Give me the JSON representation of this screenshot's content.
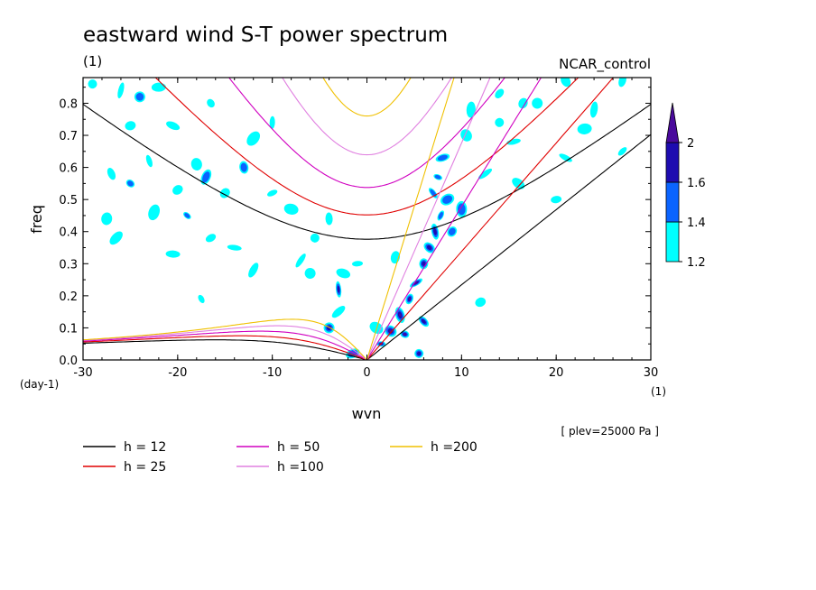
{
  "chart_data": {
    "type": "contour",
    "title": "eastward wind S-T power spectrum",
    "subtitle_left": "(1)",
    "subtitle_right": "NCAR_control",
    "xlabel": "wvn",
    "ylabel": "freq",
    "x_unit": "(1)",
    "y_unit": "(day-1)",
    "annotation": "[ plev=25000 Pa ]",
    "xlim": [
      -30,
      30
    ],
    "ylim": [
      0,
      0.88
    ],
    "x_ticks": [
      -30,
      -20,
      -10,
      0,
      10,
      20,
      30
    ],
    "x_tick_labels": [
      "-30",
      "-20",
      "-10",
      "0",
      "10",
      "20",
      "30"
    ],
    "y_ticks": [
      0,
      0.1,
      0.2,
      0.3,
      0.4,
      0.5,
      0.6,
      0.7,
      0.8
    ],
    "y_tick_labels": [
      "0.0",
      "0.1",
      "0.2",
      "0.3",
      "0.4",
      "0.5",
      "0.6",
      "0.7",
      "0.8"
    ],
    "colorbar": {
      "levels": [
        1.2,
        1.4,
        1.6,
        2
      ],
      "level_labels": [
        "1.2",
        "1.4",
        "1.6",
        "2"
      ],
      "colors": [
        "#00ffff",
        "#0a64ff",
        "#1e0cb0",
        "#4a0a9c"
      ],
      "extend": "max"
    },
    "dispersion_curves": [
      {
        "label": "h = 12",
        "h": 12,
        "color": "#000000"
      },
      {
        "label": "h = 25",
        "h": 25,
        "color": "#e00000"
      },
      {
        "label": "h = 50",
        "h": 50,
        "color": "#d000c0"
      },
      {
        "label": "h =100",
        "h": 100,
        "color": "#e080e0"
      },
      {
        "label": "h =200",
        "h": 200,
        "color": "#f0c000"
      }
    ],
    "spectral_blobs": [
      {
        "x": 1.5,
        "y": 0.05,
        "level": 3
      },
      {
        "x": 2.5,
        "y": 0.09,
        "level": 3
      },
      {
        "x": 3.5,
        "y": 0.14,
        "level": 3
      },
      {
        "x": 4.5,
        "y": 0.19,
        "level": 3
      },
      {
        "x": 5.2,
        "y": 0.24,
        "level": 3
      },
      {
        "x": 6.0,
        "y": 0.3,
        "level": 2
      },
      {
        "x": 6.6,
        "y": 0.35,
        "level": 2
      },
      {
        "x": 7.2,
        "y": 0.4,
        "level": 2
      },
      {
        "x": 7.8,
        "y": 0.45,
        "level": 1
      },
      {
        "x": 8.5,
        "y": 0.5,
        "level": 1
      },
      {
        "x": 5.5,
        "y": 0.02,
        "level": 2
      },
      {
        "x": 6.0,
        "y": 0.12,
        "level": 2
      },
      {
        "x": -3.0,
        "y": 0.22,
        "level": 2
      },
      {
        "x": -4.0,
        "y": 0.1,
        "level": 2
      },
      {
        "x": -1.5,
        "y": 0.02,
        "level": 1
      },
      {
        "x": 4.0,
        "y": 0.08,
        "level": 3
      },
      {
        "x": 7.0,
        "y": 0.52,
        "level": 1
      },
      {
        "x": 10.0,
        "y": 0.47,
        "level": 1
      },
      {
        "x": 9.0,
        "y": 0.4,
        "level": 1
      },
      {
        "x": 8.0,
        "y": 0.63,
        "level": 1
      },
      {
        "x": 7.5,
        "y": 0.57,
        "level": 1
      },
      {
        "x": 10.5,
        "y": 0.7,
        "level": 0
      },
      {
        "x": 11.0,
        "y": 0.78,
        "level": 0
      },
      {
        "x": 14.0,
        "y": 0.83,
        "level": 0
      },
      {
        "x": 15.5,
        "y": 0.68,
        "level": 0
      },
      {
        "x": 16.5,
        "y": 0.8,
        "level": 0
      },
      {
        "x": 21.0,
        "y": 0.87,
        "level": 0
      },
      {
        "x": 24.0,
        "y": 0.78,
        "level": 0
      },
      {
        "x": 27.0,
        "y": 0.65,
        "level": 0
      },
      {
        "x": 23.0,
        "y": 0.72,
        "level": 0
      },
      {
        "x": -29.0,
        "y": 0.86,
        "level": 0
      },
      {
        "x": -27.0,
        "y": 0.58,
        "level": 0
      },
      {
        "x": -26.0,
        "y": 0.84,
        "level": 0
      },
      {
        "x": -24.0,
        "y": 0.82,
        "level": 1
      },
      {
        "x": -22.0,
        "y": 0.85,
        "level": 0
      },
      {
        "x": -25.0,
        "y": 0.55,
        "level": 1
      },
      {
        "x": -23.0,
        "y": 0.62,
        "level": 0
      },
      {
        "x": -22.5,
        "y": 0.46,
        "level": 0
      },
      {
        "x": -20.0,
        "y": 0.53,
        "level": 0
      },
      {
        "x": -20.5,
        "y": 0.33,
        "level": 0
      },
      {
        "x": -19.0,
        "y": 0.45,
        "level": 1
      },
      {
        "x": -18.0,
        "y": 0.61,
        "level": 0
      },
      {
        "x": -17.0,
        "y": 0.57,
        "level": 1
      },
      {
        "x": -16.5,
        "y": 0.38,
        "level": 0
      },
      {
        "x": -14.0,
        "y": 0.35,
        "level": 0
      },
      {
        "x": -15.0,
        "y": 0.52,
        "level": 0
      },
      {
        "x": -13.0,
        "y": 0.6,
        "level": 1
      },
      {
        "x": -12.0,
        "y": 0.28,
        "level": 0
      },
      {
        "x": -10.0,
        "y": 0.52,
        "level": 0
      },
      {
        "x": -8.0,
        "y": 0.47,
        "level": 0
      },
      {
        "x": -5.5,
        "y": 0.38,
        "level": 0
      },
      {
        "x": -4.0,
        "y": 0.44,
        "level": 0
      },
      {
        "x": -7.0,
        "y": 0.31,
        "level": 0
      },
      {
        "x": -6.0,
        "y": 0.27,
        "level": 0
      },
      {
        "x": -2.5,
        "y": 0.27,
        "level": 0
      },
      {
        "x": -16.5,
        "y": 0.8,
        "level": 0
      },
      {
        "x": -10.0,
        "y": 0.74,
        "level": 0
      },
      {
        "x": -12.0,
        "y": 0.69,
        "level": 0
      },
      {
        "x": -25.0,
        "y": 0.73,
        "level": 0
      },
      {
        "x": -20.5,
        "y": 0.73,
        "level": 0
      },
      {
        "x": -17.5,
        "y": 0.19,
        "level": 0
      },
      {
        "x": -27.5,
        "y": 0.44,
        "level": 0
      },
      {
        "x": -26.5,
        "y": 0.38,
        "level": 0
      },
      {
        "x": 20.0,
        "y": 0.5,
        "level": 0
      },
      {
        "x": 21.0,
        "y": 0.63,
        "level": 0
      },
      {
        "x": 12.0,
        "y": 0.18,
        "level": 0
      },
      {
        "x": 3.0,
        "y": 0.32,
        "level": 0
      },
      {
        "x": -3.0,
        "y": 0.15,
        "level": 0
      },
      {
        "x": -1.0,
        "y": 0.3,
        "level": 0
      },
      {
        "x": 1.0,
        "y": 0.1,
        "level": 0
      },
      {
        "x": 14.0,
        "y": 0.74,
        "level": 0
      },
      {
        "x": 27.0,
        "y": 0.87,
        "level": 0
      },
      {
        "x": 12.5,
        "y": 0.58,
        "level": 0
      },
      {
        "x": 18.0,
        "y": 0.8,
        "level": 0
      },
      {
        "x": 16.0,
        "y": 0.55,
        "level": 0
      }
    ]
  }
}
